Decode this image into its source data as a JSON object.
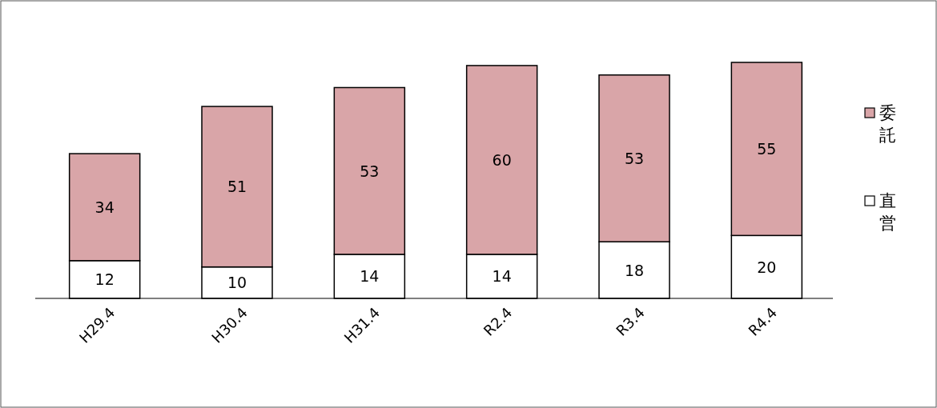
{
  "chart_data": {
    "type": "bar",
    "stacked": true,
    "data_labels": true,
    "legend": "right",
    "categories": [
      "H29.4",
      "H30.4",
      "H31.4",
      "R2.4",
      "R3.4",
      "R4.4"
    ],
    "series": [
      {
        "name": "直営",
        "color": "#ffffff",
        "values": [
          12,
          10,
          14,
          14,
          18,
          20
        ]
      },
      {
        "name": "委託",
        "color": "#d9a5a8",
        "values": [
          34,
          51,
          53,
          60,
          53,
          55
        ]
      }
    ]
  }
}
